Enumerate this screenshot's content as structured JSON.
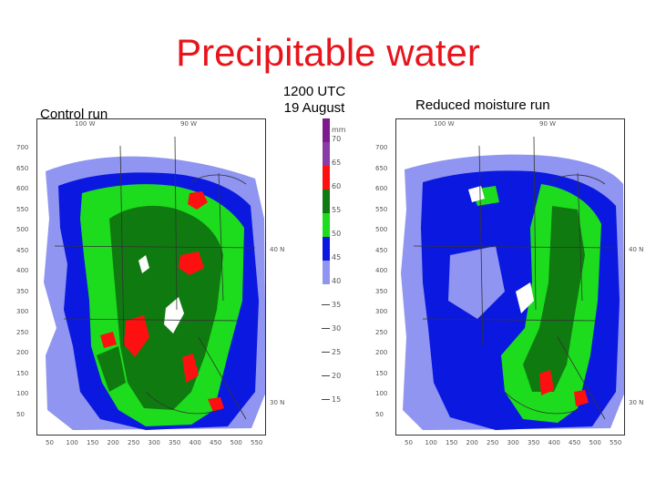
{
  "title": "Precipitable water",
  "time": {
    "line1": "1200 UTC",
    "line2": "19 August"
  },
  "panels": {
    "left_label": "Control run",
    "right_label": "Reduced moisture run"
  },
  "colorbar": {
    "unit": "mm",
    "levels": [
      "70",
      "65",
      "60",
      "55",
      "50",
      "45",
      "40",
      "35",
      "30",
      "25",
      "20",
      "15"
    ],
    "colors": [
      "#7d1a8c",
      "#8a3aa5",
      "#ff1010",
      "#0f7a0f",
      "#1ddc1d",
      "#0b18e0",
      "#8f95f0"
    ]
  },
  "axes": {
    "y_ticks": [
      "700",
      "650",
      "600",
      "550",
      "500",
      "450",
      "400",
      "350",
      "300",
      "250",
      "200",
      "150",
      "100",
      "50"
    ],
    "x_ticks": [
      "50",
      "100",
      "150",
      "200",
      "250",
      "300",
      "350",
      "400",
      "450",
      "500",
      "550"
    ],
    "lat_labels": [
      "40 N",
      "30 N"
    ],
    "lon_labels": [
      "100 W",
      "90 W"
    ]
  },
  "colors": {
    "title": "#e8141c"
  }
}
